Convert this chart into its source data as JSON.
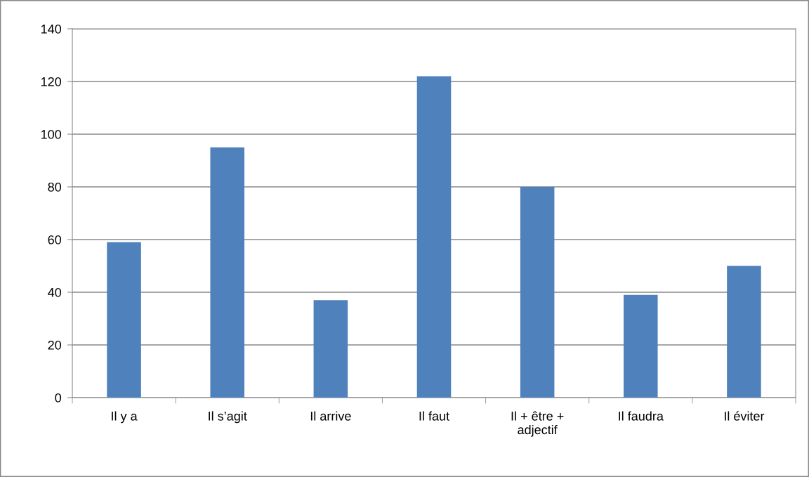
{
  "chart_data": {
    "type": "bar",
    "categories": [
      "Il y a",
      "Il s’agit",
      "Il arrive",
      "Il faut",
      "Il + être + adjectif",
      "Il faudra",
      "Il éviter"
    ],
    "values": [
      59,
      95,
      37,
      122,
      80,
      39,
      50
    ],
    "color": "#4f81bd",
    "ylim": [
      0,
      140
    ],
    "yticks": [
      0,
      20,
      40,
      60,
      80,
      100,
      120,
      140
    ],
    "grid": "y"
  }
}
